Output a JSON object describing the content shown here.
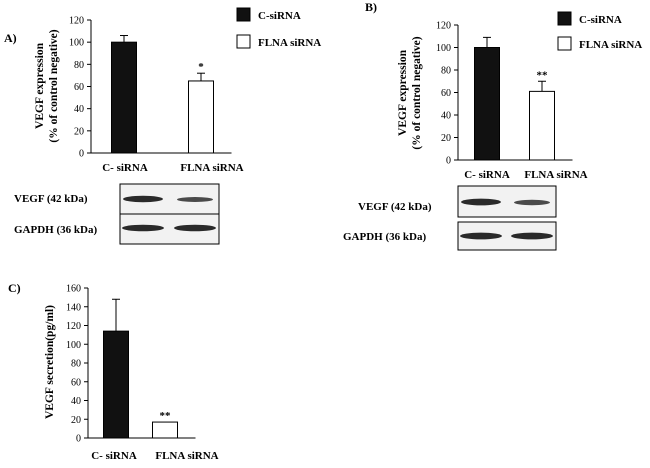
{
  "panels": {
    "A": "A)",
    "B": "B)",
    "C": "C)"
  },
  "legend": {
    "c_sirna": "C-siRNA",
    "flna_sirna": "FLNA siRNA"
  },
  "blots": {
    "vegf": "VEGF (42 kDa)",
    "gapdh": "GAPDH (36 kDa)"
  },
  "colors": {
    "c_sirna_bar": "#111111",
    "flna_sirna_bar": "#ffffff"
  },
  "chart_data": [
    {
      "type": "bar",
      "panel": "A)",
      "categories": [
        "C- siRNA",
        "FLNA siRNA"
      ],
      "values": [
        100,
        65
      ],
      "errors": [
        6,
        7
      ],
      "significance": [
        "",
        "*"
      ],
      "ylabel": [
        "VEGF expression",
        "(% of control negative)"
      ],
      "ylim": [
        0,
        120
      ],
      "yticks": [
        0,
        20,
        40,
        60,
        80,
        100,
        120
      ]
    },
    {
      "type": "bar",
      "panel": "B)",
      "categories": [
        "C- siRNA",
        "FLNA siRNA"
      ],
      "values": [
        100,
        61
      ],
      "errors": [
        9,
        9
      ],
      "significance": [
        "",
        "**"
      ],
      "ylabel": [
        "VEGF expression",
        "(% of control negative)"
      ],
      "ylim": [
        0,
        120
      ],
      "yticks": [
        0,
        20,
        40,
        60,
        80,
        100,
        120
      ]
    },
    {
      "type": "bar",
      "panel": "C)",
      "categories": [
        "C- siRNA",
        "FLNA siRNA"
      ],
      "values": [
        114,
        17
      ],
      "errors": [
        34,
        0
      ],
      "significance": [
        "",
        "**"
      ],
      "ylabel": [
        "VEGF secretion(pg/ml)"
      ],
      "ylim": [
        0,
        160
      ],
      "yticks": [
        0,
        20,
        40,
        60,
        80,
        100,
        120,
        140,
        160
      ]
    }
  ]
}
